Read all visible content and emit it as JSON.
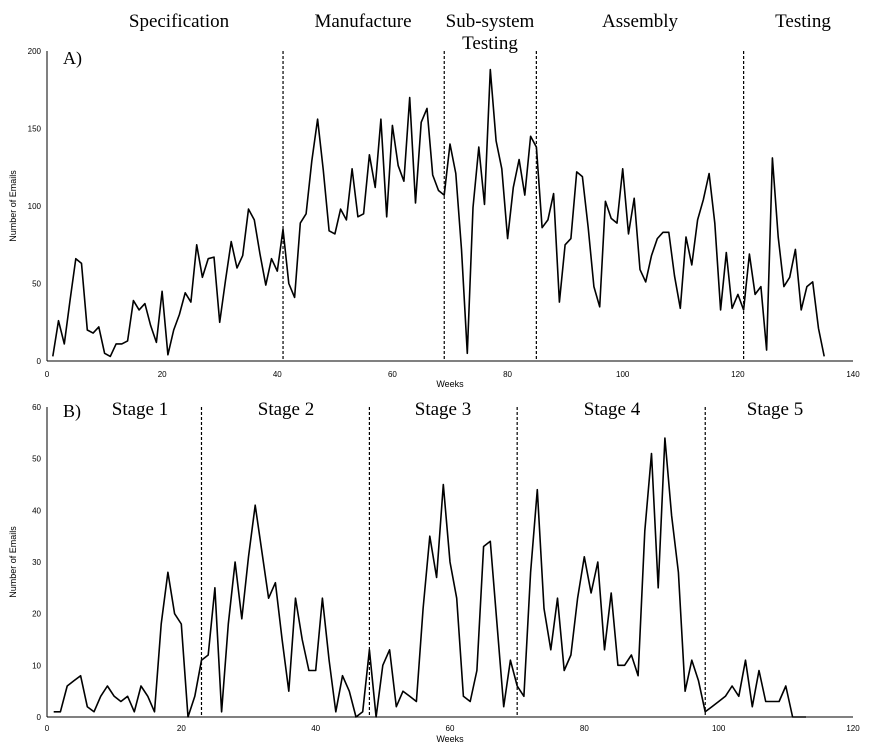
{
  "chart_data": [
    {
      "type": "line",
      "panel": "A)",
      "xlabel": "Weeks",
      "ylabel": "Number of Emails",
      "xlim": [
        0,
        140
      ],
      "ylim": [
        0,
        200
      ],
      "xticks": [
        0,
        20,
        40,
        60,
        80,
        100,
        120,
        140
      ],
      "yticks": [
        0,
        50,
        100,
        150,
        200
      ],
      "phases": [
        "Specification",
        "Manufacture",
        "Sub-system\nTesting",
        "Assembly",
        "Testing"
      ],
      "dividers": [
        41,
        69,
        85,
        121
      ],
      "x": [
        1,
        2,
        3,
        4,
        5,
        6,
        7,
        8,
        9,
        10,
        11,
        12,
        13,
        14,
        15,
        16,
        17,
        18,
        19,
        20,
        21,
        22,
        23,
        24,
        25,
        26,
        27,
        28,
        29,
        30,
        31,
        32,
        33,
        34,
        35,
        36,
        37,
        38,
        39,
        40,
        41,
        42,
        43,
        44,
        45,
        46,
        47,
        48,
        49,
        50,
        51,
        52,
        53,
        54,
        55,
        56,
        57,
        58,
        59,
        60,
        61,
        62,
        63,
        64,
        65,
        66,
        67,
        68,
        69,
        70,
        71,
        72,
        73,
        74,
        75,
        76,
        77,
        78,
        79,
        80,
        81,
        82,
        83,
        84,
        85,
        86,
        87,
        88,
        89,
        90,
        91,
        92,
        93,
        94,
        95,
        96,
        97,
        98,
        99,
        100,
        101,
        102,
        103,
        104,
        105,
        106,
        107,
        108,
        109,
        110,
        111,
        112,
        113,
        114,
        115,
        116,
        117,
        118,
        119,
        120,
        121,
        122,
        123,
        124,
        125,
        126,
        127,
        128,
        129,
        130,
        131,
        132,
        133,
        134,
        135
      ],
      "y": [
        3,
        26,
        11,
        39,
        66,
        63,
        20,
        18,
        22,
        5,
        3,
        11,
        11,
        13,
        39,
        33,
        37,
        23,
        12,
        45,
        4,
        20,
        30,
        44,
        38,
        75,
        54,
        66,
        67,
        25,
        52,
        77,
        60,
        68,
        98,
        91,
        69,
        49,
        66,
        58,
        85,
        50,
        41,
        89,
        95,
        129,
        156,
        123,
        84,
        82,
        98,
        91,
        124,
        93,
        95,
        133,
        112,
        156,
        93,
        152,
        126,
        116,
        170,
        102,
        154,
        163,
        120,
        110,
        107,
        140,
        121,
        72,
        5,
        99,
        138,
        101,
        188,
        142,
        124,
        79,
        112,
        130,
        107,
        145,
        138,
        86,
        91,
        108,
        38,
        75,
        79,
        122,
        119,
        86,
        48,
        35,
        103,
        92,
        89,
        124,
        82,
        105,
        59,
        51,
        68,
        79,
        83,
        83,
        55,
        34,
        80,
        62,
        91,
        104,
        121,
        89,
        33,
        70,
        34,
        43,
        33,
        69,
        43,
        48,
        7,
        131,
        80,
        48,
        54,
        72,
        33,
        48,
        51,
        21,
        3
      ]
    },
    {
      "type": "line",
      "panel": "B)",
      "xlabel": "Weeks",
      "ylabel": "Number of Emails",
      "xlim": [
        0,
        120
      ],
      "ylim": [
        0,
        60
      ],
      "xticks": [
        0,
        20,
        40,
        60,
        80,
        100,
        120
      ],
      "yticks": [
        0,
        10,
        20,
        30,
        40,
        50,
        60
      ],
      "phases": [
        "Stage 1",
        "Stage 2",
        "Stage 3",
        "Stage 4",
        "Stage 5"
      ],
      "dividers": [
        23,
        48,
        70,
        98
      ],
      "x": [
        1,
        2,
        3,
        4,
        5,
        6,
        7,
        8,
        9,
        10,
        11,
        12,
        13,
        14,
        15,
        16,
        17,
        18,
        19,
        20,
        21,
        22,
        23,
        24,
        25,
        26,
        27,
        28,
        29,
        30,
        31,
        32,
        33,
        34,
        35,
        36,
        37,
        38,
        39,
        40,
        41,
        42,
        43,
        44,
        45,
        46,
        47,
        48,
        49,
        50,
        51,
        52,
        53,
        54,
        55,
        56,
        57,
        58,
        59,
        60,
        61,
        62,
        63,
        64,
        65,
        66,
        67,
        68,
        69,
        70,
        71,
        72,
        73,
        74,
        75,
        76,
        77,
        78,
        79,
        80,
        81,
        82,
        83,
        84,
        85,
        86,
        87,
        88,
        89,
        90,
        91,
        92,
        93,
        94,
        95,
        96,
        97,
        98,
        99,
        100,
        101,
        102,
        103,
        104,
        105,
        106,
        107,
        108,
        109,
        110,
        111,
        112,
        113
      ],
      "y": [
        1,
        1,
        6,
        7,
        8,
        2,
        1,
        4,
        6,
        4,
        3,
        4,
        1,
        6,
        4,
        1,
        18,
        28,
        20,
        18,
        0,
        4,
        11,
        12,
        25,
        1,
        18,
        30,
        19,
        31,
        41,
        32,
        23,
        26,
        15,
        5,
        23,
        15,
        9,
        9,
        23,
        11,
        1,
        8,
        5,
        0,
        1,
        13,
        0,
        10,
        13,
        2,
        5,
        4,
        3,
        21,
        35,
        27,
        45,
        30,
        23,
        4,
        3,
        9,
        33,
        34,
        18,
        2,
        11,
        6,
        4,
        28,
        44,
        21,
        13,
        23,
        9,
        12,
        23,
        31,
        24,
        30,
        13,
        24,
        10,
        10,
        12,
        8,
        36,
        51,
        25,
        54,
        39,
        28,
        5,
        11,
        7,
        1,
        2,
        3,
        4,
        6,
        4,
        11,
        2,
        9,
        3,
        3,
        3,
        6,
        0,
        0,
        0
      ]
    }
  ]
}
